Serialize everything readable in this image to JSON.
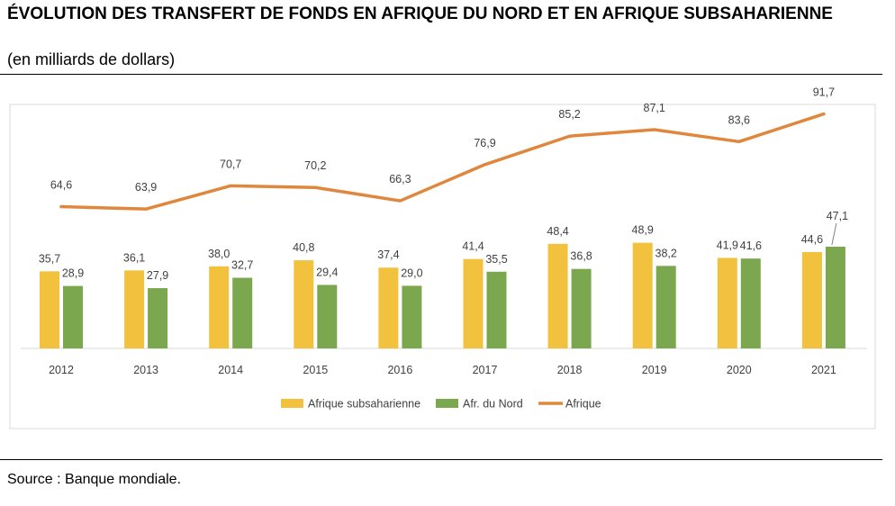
{
  "header": {
    "title": "ÉVOLUTION DES TRANSFERT DE FONDS EN AFRIQUE DU NORD ET EN AFRIQUE SUBSAHARIENNE",
    "subtitle": "(en milliards de dollars)"
  },
  "footer": {
    "source": "Source : Banque mondiale."
  },
  "chart_data": {
    "type": "bar",
    "categories": [
      "2012",
      "2013",
      "2014",
      "2015",
      "2016",
      "2017",
      "2018",
      "2019",
      "2020",
      "2021"
    ],
    "series": [
      {
        "name": "Afrique subsaharienne",
        "type": "bar",
        "color": "#F2C23E",
        "values": [
          35.7,
          36.1,
          38.0,
          40.8,
          37.4,
          41.4,
          48.4,
          48.9,
          41.9,
          44.6
        ],
        "labels": [
          "35,7",
          "36,1",
          "38,0",
          "40,8",
          "37,4",
          "41,4",
          "48,4",
          "48,9",
          "41,9",
          "44,6"
        ]
      },
      {
        "name": "Afr. du Nord",
        "type": "bar",
        "color": "#7BA84E",
        "values": [
          28.9,
          27.9,
          32.7,
          29.4,
          29.0,
          35.5,
          36.8,
          38.2,
          41.6,
          47.1
        ],
        "labels": [
          "28,9",
          "27,9",
          "32,7",
          "29,4",
          "29,0",
          "35,5",
          "36,8",
          "38,2",
          "41,6",
          "47,1"
        ]
      },
      {
        "name": "Afrique",
        "type": "line",
        "color": "#E0873E",
        "values": [
          64.6,
          63.9,
          70.7,
          70.2,
          66.3,
          76.9,
          85.2,
          87.1,
          83.6,
          91.7
        ],
        "labels": [
          "64,6",
          "63,9",
          "70,7",
          "70,2",
          "66,3",
          "76,9",
          "85,2",
          "87,1",
          "83,6",
          "91,7"
        ]
      }
    ],
    "legend_position": "bottom",
    "grid": false
  }
}
